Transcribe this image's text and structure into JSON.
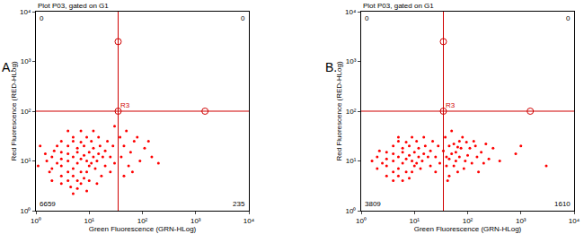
{
  "chart_data": [
    {
      "type": "scatter",
      "panel_label": "A.",
      "title": "Plot P03, gated on G1",
      "x_label": "Green Fluorescence (GRN-HLog)",
      "y_label": "Red Fluorescence (RED-HLog)",
      "color": "#ff0000",
      "log": true,
      "grid": false,
      "xlim": [
        1,
        10000
      ],
      "ylim": [
        1,
        10000
      ],
      "xticks": [
        {
          "value": 1,
          "label": "10⁰"
        },
        {
          "value": 10,
          "label": "10¹"
        },
        {
          "value": 100,
          "label": "10²"
        },
        {
          "value": 1000,
          "label": "10³"
        },
        {
          "value": 10000,
          "label": "10⁴"
        }
      ],
      "yticks": [
        {
          "value": 1,
          "label": "10⁰"
        },
        {
          "value": 10,
          "label": "10¹"
        },
        {
          "value": 100,
          "label": "10²"
        },
        {
          "value": 1000,
          "label": "10³"
        },
        {
          "value": 10000,
          "label": "10⁴"
        }
      ],
      "gate": {
        "label": "R3",
        "x": 35,
        "y": 100,
        "handles_x": [
          35,
          35,
          1500
        ],
        "handles_y": [
          2500,
          100,
          100
        ]
      },
      "quadrant_counts": {
        "upper_left": 0,
        "upper_right": 0,
        "lower_left": 6659,
        "lower_right": 235
      },
      "x": [
        3,
        4,
        5,
        6,
        7,
        5,
        4,
        6,
        8,
        3,
        2.5,
        9,
        10,
        7,
        5,
        4,
        3,
        6,
        8,
        4,
        10,
        12,
        11,
        2,
        2,
        3,
        7,
        5,
        9,
        12,
        14,
        15,
        13,
        6,
        4,
        8,
        2.2,
        1.6,
        1.8,
        16,
        18,
        20,
        20,
        5,
        9,
        3,
        11,
        7,
        10,
        3,
        4.5,
        6,
        25,
        28,
        22,
        15,
        1.5,
        2.5,
        7,
        12,
        4,
        17,
        25,
        30,
        5,
        9,
        2,
        14,
        40,
        45,
        55,
        60,
        70,
        90,
        110,
        150,
        45,
        80,
        65,
        200,
        50,
        130,
        38,
        1.2,
        1.1,
        30
      ],
      "y": [
        8,
        10,
        12,
        9,
        11,
        7,
        14,
        15,
        13,
        11,
        9,
        10,
        8,
        6,
        5,
        6,
        5,
        18,
        20,
        20,
        15,
        12,
        9,
        12,
        7,
        15,
        24,
        25,
        6,
        18,
        10,
        14,
        7,
        4,
        4,
        4.5,
        16,
        10,
        6,
        20,
        12,
        8,
        16,
        30,
        30,
        25,
        25,
        3.5,
        4,
        3.5,
        3,
        2.8,
        12,
        20,
        25,
        30,
        14,
        20,
        40,
        40,
        40,
        5,
        6,
        9,
        2.2,
        2.5,
        4,
        3.5,
        12,
        20,
        8,
        15,
        25,
        10,
        18,
        12,
        5,
        30,
        6,
        9,
        40,
        25,
        30,
        20,
        8,
        50
      ]
    },
    {
      "type": "scatter",
      "panel_label": "B.",
      "title": "Plot P03, gated on G1",
      "x_label": "Green Fluorescence (GRN-HLog)",
      "y_label": "Red Fluorescence (RED-HLog)",
      "color": "#ff0000",
      "log": true,
      "grid": false,
      "xlim": [
        1,
        10000
      ],
      "ylim": [
        1,
        10000
      ],
      "xticks": [
        {
          "value": 1,
          "label": "10⁰"
        },
        {
          "value": 10,
          "label": "10¹"
        },
        {
          "value": 100,
          "label": "10²"
        },
        {
          "value": 1000,
          "label": "10³"
        },
        {
          "value": 10000,
          "label": "10⁴"
        }
      ],
      "yticks": [
        {
          "value": 1,
          "label": "10⁰"
        },
        {
          "value": 10,
          "label": "10¹"
        },
        {
          "value": 100,
          "label": "10²"
        },
        {
          "value": 1000,
          "label": "10³"
        },
        {
          "value": 10000,
          "label": "10⁴"
        }
      ],
      "gate": {
        "label": "R3",
        "x": 35,
        "y": 100,
        "handles_x": [
          35,
          35,
          1500
        ],
        "handles_y": [
          2500,
          100,
          100
        ]
      },
      "quadrant_counts": {
        "upper_left": 0,
        "upper_right": 0,
        "lower_left": 3809,
        "lower_right": 1610
      },
      "x": [
        3,
        4,
        5,
        6,
        7,
        5,
        4,
        6,
        8,
        3,
        2.5,
        9,
        10,
        7,
        5,
        4,
        3,
        6,
        8,
        4,
        10,
        12,
        11,
        2,
        2,
        3,
        7,
        5,
        9,
        12,
        14,
        15,
        13,
        6,
        4,
        8,
        2.2,
        1.6,
        16,
        18,
        20,
        20,
        5,
        9,
        11,
        25,
        28,
        22,
        15,
        25,
        30,
        40,
        45,
        55,
        60,
        70,
        90,
        110,
        150,
        45,
        80,
        65,
        200,
        50,
        130,
        38,
        40,
        50,
        60,
        75,
        85,
        100,
        120,
        140,
        180,
        250,
        300,
        400,
        35,
        55,
        70,
        95,
        160,
        220,
        45,
        65,
        800,
        3000,
        42,
        1000
      ],
      "y": [
        8,
        10,
        12,
        9,
        11,
        7,
        14,
        15,
        13,
        11,
        9,
        10,
        8,
        6,
        5,
        6,
        5,
        18,
        20,
        20,
        15,
        12,
        9,
        12,
        7,
        15,
        24,
        25,
        6,
        18,
        10,
        14,
        7,
        4,
        4,
        4.5,
        16,
        10,
        20,
        12,
        8,
        16,
        30,
        30,
        25,
        12,
        20,
        25,
        30,
        6,
        9,
        12,
        20,
        8,
        15,
        25,
        10,
        18,
        12,
        5,
        30,
        6,
        9,
        40,
        25,
        30,
        8,
        14,
        10,
        18,
        7,
        13,
        9,
        20,
        15,
        11,
        18,
        10,
        16,
        22,
        12,
        24,
        6,
        22,
        11,
        19,
        14,
        8,
        4,
        20
      ]
    }
  ]
}
